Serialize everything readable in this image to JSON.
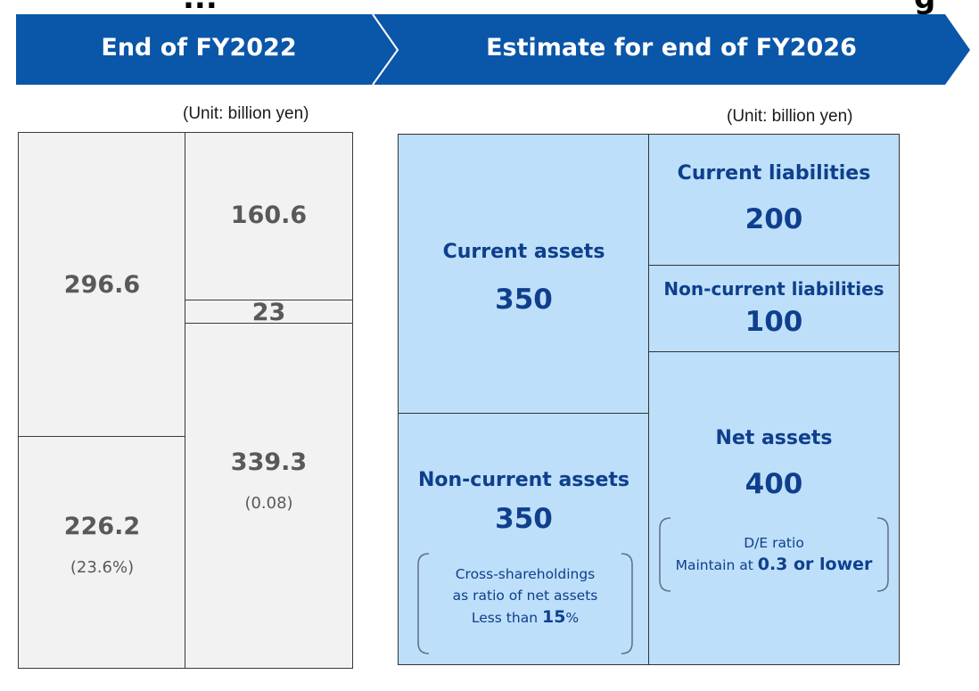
{
  "top_partial": {
    "left_text": "...",
    "right_text": "g"
  },
  "banner": {
    "left_label": "End of FY2022",
    "right_label": "Estimate for end of FY2026",
    "color": "#0a56a8"
  },
  "fy2022": {
    "unit": "(Unit: billion yen)",
    "assets_top_value": "296.6",
    "liab_top_value": "160.6",
    "liab_mid_value": "23",
    "assets_bottom_value": "226.2",
    "assets_bottom_pct": "(23.6%)",
    "net_value": "339.3",
    "net_ratio": "(0.08)"
  },
  "fy2026": {
    "unit": "(Unit: billion yen)",
    "current_assets": {
      "label": "Current assets",
      "value": "350"
    },
    "noncurrent_assets": {
      "label": "Non-current assets",
      "value": "350",
      "note_line1": "Cross-shareholdings",
      "note_line2": "as ratio of net assets",
      "note_prefix": "Less than",
      "note_value": "15",
      "note_suffix": "%"
    },
    "current_liabilities": {
      "label": "Current liabilities",
      "value": "200"
    },
    "noncurrent_liabilities": {
      "label": "Non-current liabilities",
      "value": "100"
    },
    "net_assets": {
      "label": "Net assets",
      "value": "400",
      "note_line1": "D/E ratio",
      "note_prefix": "Maintain at",
      "note_value": "0.3 or lower"
    }
  }
}
